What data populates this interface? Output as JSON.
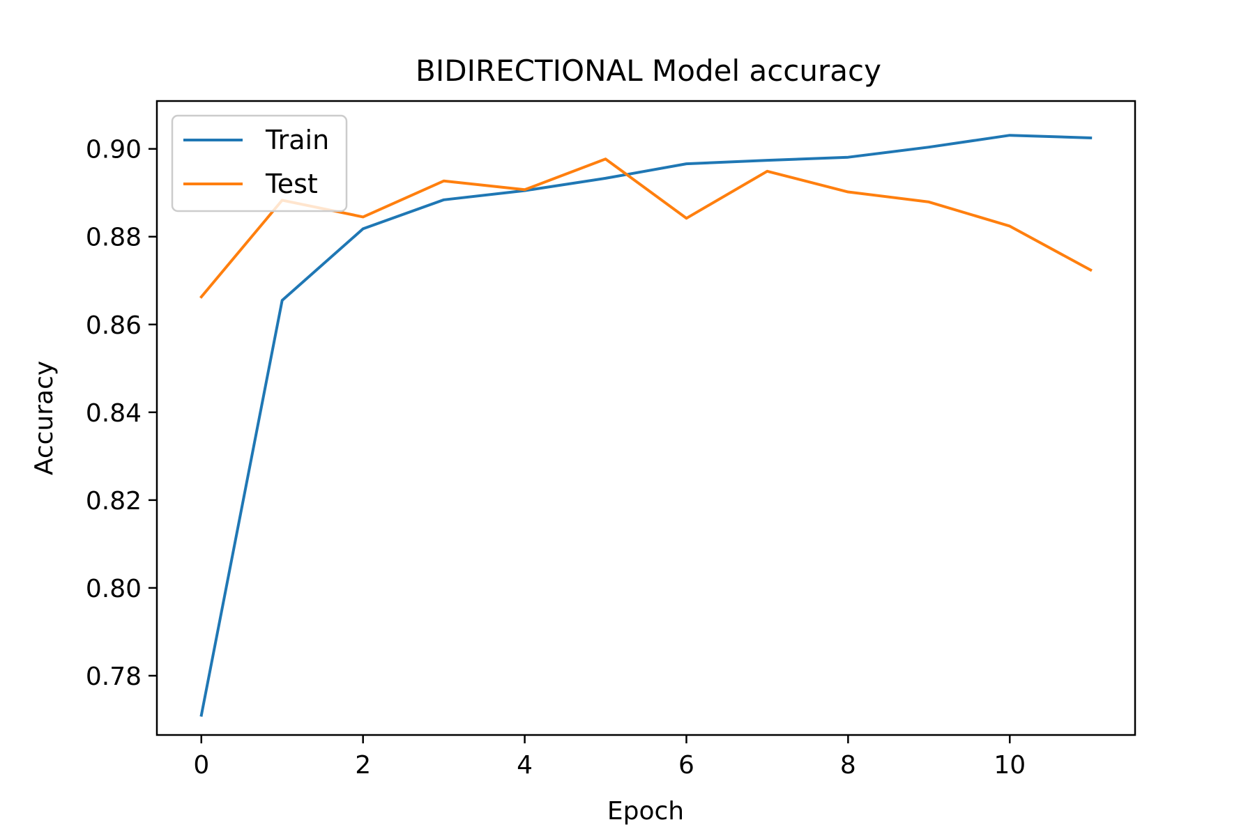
{
  "chart_data": {
    "type": "line",
    "title": "BIDIRECTIONAL Model accuracy",
    "xlabel": "Epoch",
    "ylabel": "Accuracy",
    "xlim": [
      -0.55,
      11.55
    ],
    "ylim": [
      0.7665,
      0.9109
    ],
    "xticks": [
      0,
      2,
      4,
      6,
      8,
      10
    ],
    "xtick_labels": [
      "0",
      "2",
      "4",
      "6",
      "8",
      "10"
    ],
    "yticks": [
      0.78,
      0.8,
      0.82,
      0.84,
      0.86,
      0.88,
      0.9
    ],
    "ytick_labels": [
      "0.78",
      "0.80",
      "0.82",
      "0.84",
      "0.86",
      "0.88",
      "0.90"
    ],
    "grid": false,
    "legend_position": "upper left",
    "x": [
      0,
      1,
      2,
      3,
      4,
      5,
      6,
      7,
      8,
      9,
      10,
      11
    ],
    "series": [
      {
        "name": "Train",
        "color": "#1f77b4",
        "values": [
          0.771,
          0.8655,
          0.8818,
          0.8884,
          0.8905,
          0.8933,
          0.8966,
          0.8974,
          0.8981,
          0.9004,
          0.9031,
          0.9025
        ]
      },
      {
        "name": "Test",
        "color": "#ff7f0e",
        "values": [
          0.8663,
          0.8883,
          0.8845,
          0.8927,
          0.8907,
          0.8977,
          0.8842,
          0.8949,
          0.8902,
          0.8879,
          0.8824,
          0.8724
        ]
      }
    ]
  }
}
